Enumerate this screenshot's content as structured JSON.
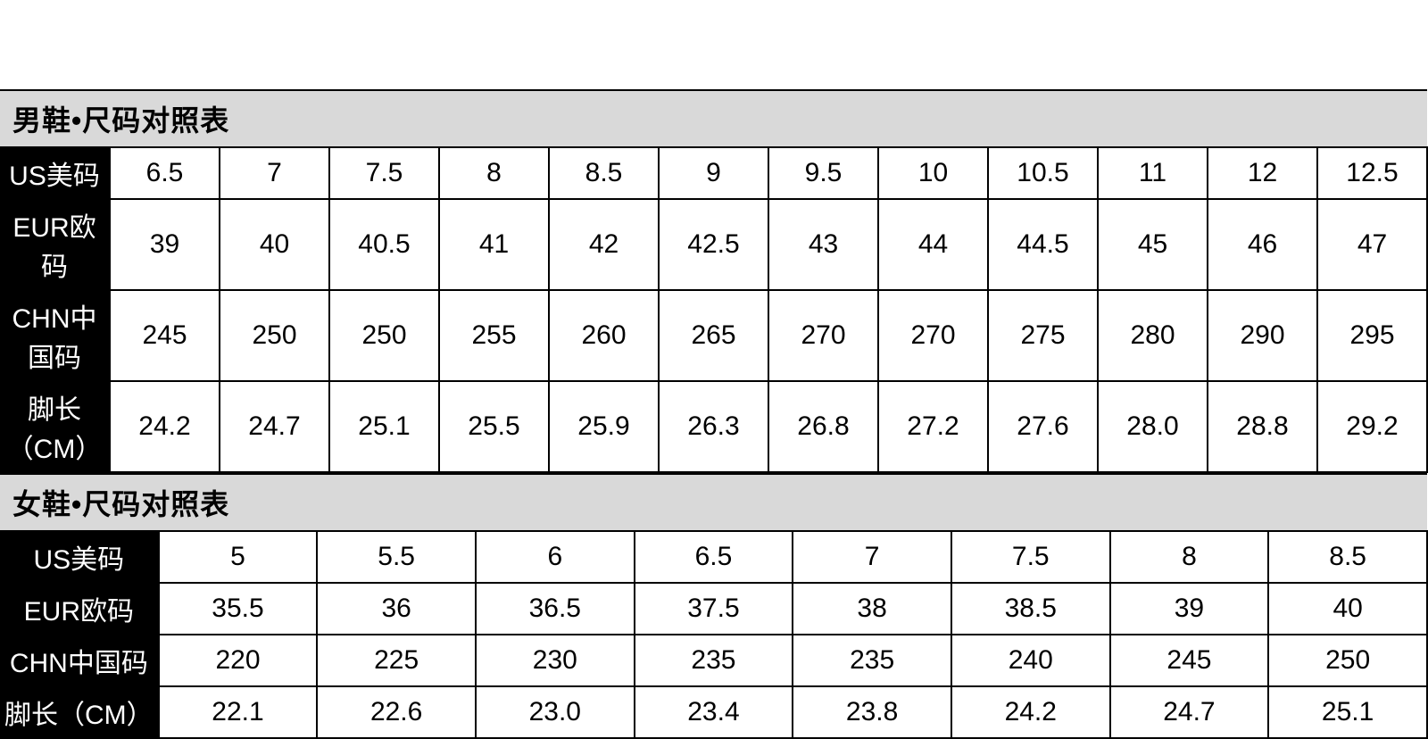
{
  "colors": {
    "title_bg": "#d9d9d9",
    "title_text": "#000000",
    "label_bg": "#000000",
    "label_text": "#ffffff",
    "cell_bg": "#ffffff",
    "cell_text": "#000000",
    "border": "#000000"
  },
  "typography": {
    "title_fontsize": 32,
    "title_weight": "bold",
    "cell_fontsize": 30,
    "label_fontsize": 30,
    "font_family": "Microsoft YaHei"
  },
  "layout": {
    "border_width": 2,
    "men_label_col_width": 230,
    "women_label_col_width": 250
  },
  "men": {
    "title": "男鞋•尺码对照表",
    "type": "table",
    "row_labels": [
      "US美码",
      "EUR欧码",
      "CHN中国码",
      "脚长（CM）"
    ],
    "columns_count": 12,
    "rows": [
      [
        "6.5",
        "7",
        "7.5",
        "8",
        "8.5",
        "9",
        "9.5",
        "10",
        "10.5",
        "11",
        "12",
        "12.5"
      ],
      [
        "39",
        "40",
        "40.5",
        "41",
        "42",
        "42.5",
        "43",
        "44",
        "44.5",
        "45",
        "46",
        "47"
      ],
      [
        "245",
        "250",
        "250",
        "255",
        "260",
        "265",
        "270",
        "270",
        "275",
        "280",
        "290",
        "295"
      ],
      [
        "24.2",
        "24.7",
        "25.1",
        "25.5",
        "25.9",
        "26.3",
        "26.8",
        "27.2",
        "27.6",
        "28.0",
        "28.8",
        "29.2"
      ]
    ]
  },
  "women": {
    "title": "女鞋•尺码对照表",
    "type": "table",
    "row_labels": [
      "US美码",
      "EUR欧码",
      "CHN中国码",
      "脚长（CM）"
    ],
    "columns_count": 8,
    "rows": [
      [
        "5",
        "5.5",
        "6",
        "6.5",
        "7",
        "7.5",
        "8",
        "8.5"
      ],
      [
        "35.5",
        "36",
        "36.5",
        "37.5",
        "38",
        "38.5",
        "39",
        "40"
      ],
      [
        "220",
        "225",
        "230",
        "235",
        "235",
        "240",
        "245",
        "250"
      ],
      [
        "22.1",
        "22.6",
        "23.0",
        "23.4",
        "23.8",
        "24.2",
        "24.7",
        "25.1"
      ]
    ]
  }
}
